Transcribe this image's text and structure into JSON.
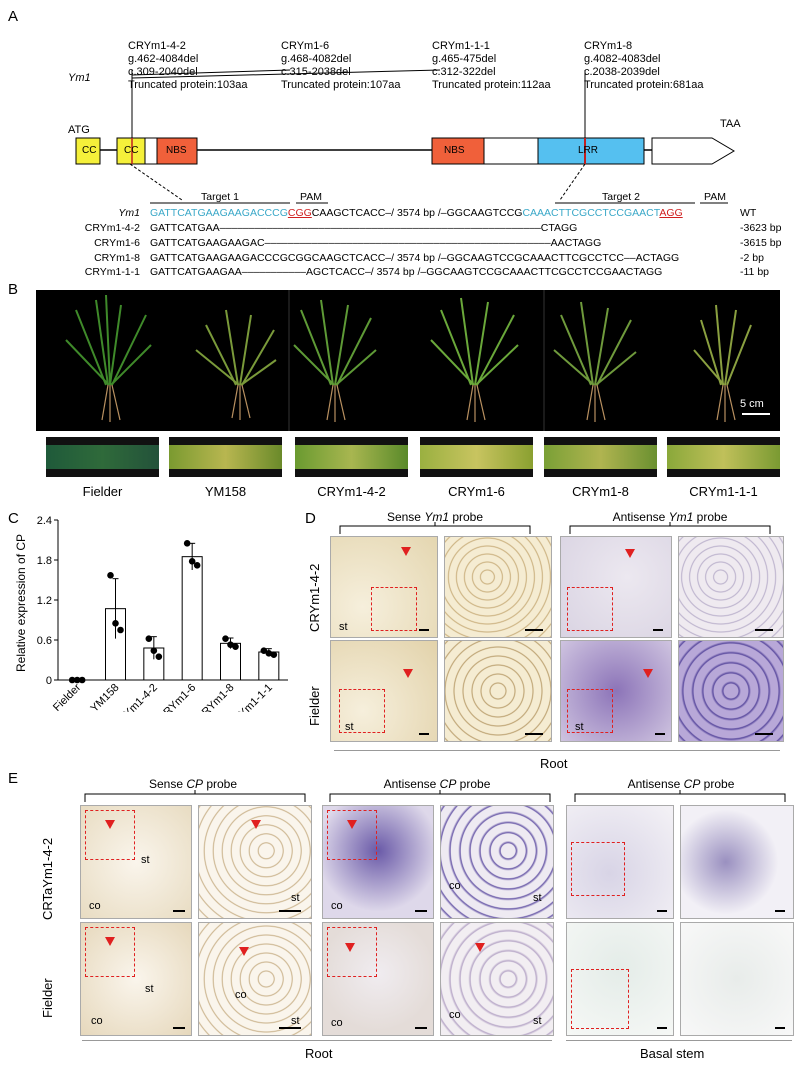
{
  "panelA": {
    "letter": "A",
    "gene_label": "Ym1",
    "mutations": [
      {
        "name": "CRYm1-4-2",
        "g": "g.462-4084del",
        "c": "c.309-2040del",
        "protein": "Truncated protein:103aa"
      },
      {
        "name": "CRYm1-6",
        "g": "g.468-4082del",
        "c": "c.315-2038del",
        "protein": "Truncated protein:107aa"
      },
      {
        "name": "CRYm1-1-1",
        "g": "g.465-475del",
        "c": "c.312-322del",
        "protein": "Truncated protein:112aa"
      },
      {
        "name": "CRYm1-8",
        "g": "g.4082-4083del",
        "c": "c.2038-2039del",
        "protein": "Truncated protein:681aa"
      }
    ],
    "atg": "ATG",
    "taa": "TAA",
    "domains": {
      "cc1": "CC",
      "cc2": "CC",
      "nbs1": "NBS",
      "nbs2": "NBS",
      "lrr": "LRR"
    },
    "target1": "Target 1",
    "target2": "Target 2",
    "pam1": "PAM",
    "pam2": "PAM",
    "alignment": [
      {
        "name": "Ym1",
        "seq_a": "GATTCATGAAGAAGACCCG",
        "pam_a": "CGG",
        "seq_b": "CAAGCTCACC–/ 3574 bp /–GGCAAGTCCG",
        "seq_c": "CAAACTTCGCCTCCGAACT",
        "pam_c": "AGG",
        "note": "WT"
      },
      {
        "name": "CRYm1-4-2",
        "text": "GATTCATGAA–––––––––––––––––––––––––––––––––––––––––––––––––––––––CTAGG",
        "note": "-3623 bp"
      },
      {
        "name": "CRYm1-6",
        "text": "GATTCATGAAGAAGAC–––––––––––––––––––––––––––––––––––––––––––––––––AACTAGG",
        "note": "-3615 bp"
      },
      {
        "name": "CRYm1-8",
        "text": "GATTCATGAAGAAGACCCGCGGCAAGCTCACC–/ 3574 bp /–GGCAAGTCCGCAAACTTCGCCTCC––ACTAGG",
        "note": "-2 bp"
      },
      {
        "name": "CRYm1-1-1",
        "text": "GATTCATGAAGAA–––––––––––AGCTCACC–/ 3574 bp /–GGCAAGTCCGCAAACTTCGCCTCCGAACTAGG",
        "note": "-11 bp"
      }
    ]
  },
  "panelB": {
    "letter": "B",
    "scale": "5 cm",
    "genotypes": [
      "Fielder",
      "YM158",
      "CRYm1-4-2",
      "CRYm1-6",
      "CRYm1-8",
      "CRYm1-1-1"
    ]
  },
  "chart_data": {
    "type": "bar",
    "title": "",
    "xlabel": "",
    "ylabel": "Relative expression of CP",
    "ylim": [
      0,
      2.4
    ],
    "yticks": [
      "0",
      "0.6",
      "1.2",
      "1.8",
      "2.4"
    ],
    "categories": [
      "Fielder",
      "YM158",
      "CRYm1-4-2",
      "CRYm1-6",
      "CRYm1-8",
      "CRYm1-1-1"
    ],
    "values": [
      0,
      1.07,
      0.48,
      1.85,
      0.55,
      0.42
    ],
    "errors": [
      0,
      0.45,
      0.17,
      0.2,
      0.08,
      0.05
    ],
    "points": [
      [
        0,
        0,
        0
      ],
      [
        1.57,
        0.85,
        0.75
      ],
      [
        0.62,
        0.44,
        0.35
      ],
      [
        2.05,
        1.78,
        1.72
      ],
      [
        0.62,
        0.53,
        0.5
      ],
      [
        0.44,
        0.4,
        0.38
      ]
    ],
    "grid": false,
    "legend": "none"
  },
  "panelC": {
    "letter": "C"
  },
  "panelD": {
    "letter": "D",
    "sense_pre": "Sense ",
    "sense_gene": "Ym1",
    "sense_post": " probe",
    "anti_pre": "Antisense ",
    "anti_gene": "Ym1",
    "anti_post": " probe",
    "row1": "CRYm1-4-2",
    "row2": "Fielder",
    "st": "st",
    "footer": "Root"
  },
  "panelE": {
    "letter": "E",
    "sense_pre": "Sense ",
    "sense_gene": "CP",
    "sense_post": " probe",
    "anti_pre": "Antisense ",
    "anti_gene": "CP",
    "anti_post": " probe",
    "anti2_pre": "Antisense ",
    "anti2_gene": "CP",
    "anti2_post": " probe",
    "row1": "CRTaYm1-4-2",
    "row2": "Fielder",
    "co": "co",
    "st": "st",
    "footer1": "Root",
    "footer2": "Basal stem"
  },
  "colors": {
    "cc": "#f5f03a",
    "nbs": "#f0603a",
    "lrr": "#55c0f0",
    "target": "#3aa8c8",
    "pam": "#d02020",
    "dash": "#e02020",
    "stain": "#5a4a9e"
  }
}
